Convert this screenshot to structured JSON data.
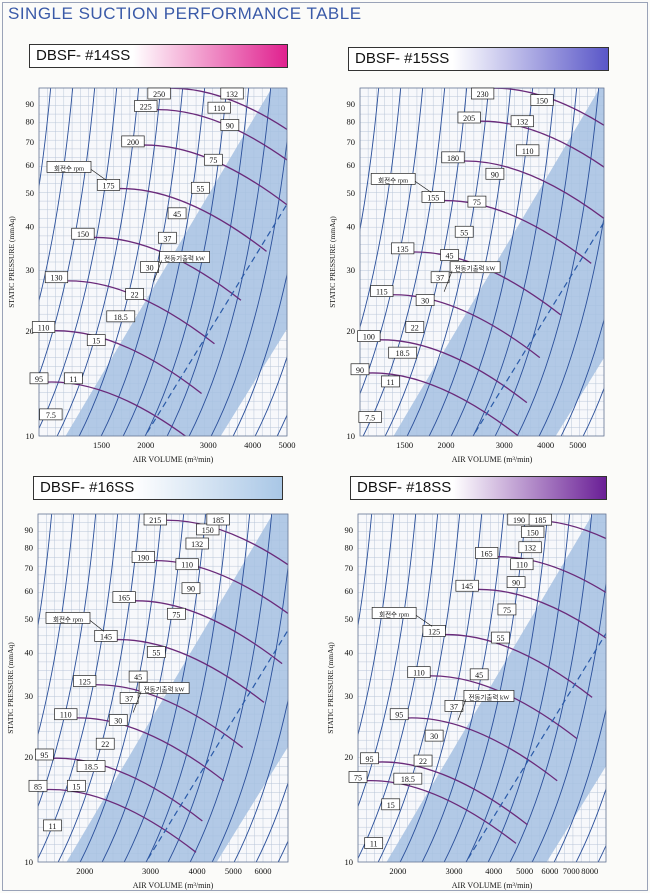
{
  "page": {
    "title": "SINGLE SUCTION PERFORMANCE TABLE"
  },
  "colors": {
    "title": "#3a5aa8",
    "band": "#a6c1e2",
    "grid": "#b9c6d8",
    "rpm_curve": "#6a2a7a",
    "power_curve": "#2a4f9a",
    "slope_line": "#2a5aa8"
  },
  "chart_data": [
    {
      "type": "line",
      "title": "DBSF- #14SS",
      "banner_colors": [
        "#ffffff",
        "#e0218f"
      ],
      "xlabel": "AIR VOLUME (m³/min)",
      "ylabel": "STATIC PRESSURE (mmAq)",
      "x_scale": "log",
      "y_scale": "log",
      "xlim": [
        1000,
        5000
      ],
      "ylim": [
        10,
        100
      ],
      "xticks": [
        1500,
        2000,
        3000,
        4000,
        5000
      ],
      "yticks": [
        10,
        20,
        30,
        40,
        50,
        60,
        70,
        80,
        90
      ],
      "rpm_label": "회전수 rpm",
      "kw_label": "전동기출력 kW",
      "rpm": [
        {
          "value": "95",
          "x": 1000,
          "y": 14.6
        },
        {
          "value": "110",
          "x": 1030,
          "y": 20.5
        },
        {
          "value": "130",
          "x": 1120,
          "y": 28.5
        },
        {
          "value": "150",
          "x": 1330,
          "y": 38.0
        },
        {
          "value": "175",
          "x": 1570,
          "y": 52.5
        },
        {
          "value": "200",
          "x": 1840,
          "y": 70.0
        },
        {
          "value": "225",
          "x": 2000,
          "y": 88.5
        },
        {
          "value": "250",
          "x": 2180,
          "y": 102.0
        }
      ],
      "kw": [
        {
          "value": "7.5",
          "x": 1080,
          "y": 11.5
        },
        {
          "value": "11",
          "x": 1250,
          "y": 14.6
        },
        {
          "value": "15",
          "x": 1450,
          "y": 18.8
        },
        {
          "value": "18.5",
          "x": 1700,
          "y": 22.0
        },
        {
          "value": "22",
          "x": 1860,
          "y": 25.5
        },
        {
          "value": "30",
          "x": 2050,
          "y": 30.5
        },
        {
          "value": "37",
          "x": 2300,
          "y": 37.0
        },
        {
          "value": "45",
          "x": 2450,
          "y": 43.5
        },
        {
          "value": "55",
          "x": 2850,
          "y": 51.5
        },
        {
          "value": "75",
          "x": 3100,
          "y": 62.0
        },
        {
          "value": "90",
          "x": 3450,
          "y": 78.0
        },
        {
          "value": "110",
          "x": 3220,
          "y": 87.5
        },
        {
          "value": "132",
          "x": 3500,
          "y": 96.5
        }
      ]
    },
    {
      "type": "line",
      "title": "DBSF- #15SS",
      "banner_colors": [
        "#ffffff",
        "#5a57c8"
      ],
      "xlabel": "AIR VOLUME (m³/min)",
      "ylabel": "STATIC PRESSURE (mmAq)",
      "x_scale": "log",
      "y_scale": "log",
      "xlim": [
        1100,
        6000
      ],
      "ylim": [
        10,
        100
      ],
      "xticks": [
        1500,
        2000,
        3000,
        4000,
        5000
      ],
      "yticks": [
        10,
        20,
        30,
        40,
        50,
        60,
        70,
        80,
        90
      ],
      "rpm_label": "회전수 rpm",
      "kw_label": "전동기출력 kW",
      "rpm": [
        {
          "value": "90",
          "x": 1100,
          "y": 15.5
        },
        {
          "value": "100",
          "x": 1170,
          "y": 19.3
        },
        {
          "value": "115",
          "x": 1280,
          "y": 26.0
        },
        {
          "value": "135",
          "x": 1480,
          "y": 34.5
        },
        {
          "value": "155",
          "x": 1830,
          "y": 48.5
        },
        {
          "value": "180",
          "x": 2100,
          "y": 63.0
        },
        {
          "value": "205",
          "x": 2350,
          "y": 82.0
        },
        {
          "value": "230",
          "x": 2580,
          "y": 102.0
        }
      ],
      "kw": [
        {
          "value": "7.5",
          "x": 1180,
          "y": 11.3
        },
        {
          "value": "11",
          "x": 1360,
          "y": 14.3
        },
        {
          "value": "18.5",
          "x": 1480,
          "y": 17.3
        },
        {
          "value": "22",
          "x": 1610,
          "y": 20.5
        },
        {
          "value": "30",
          "x": 1730,
          "y": 24.5
        },
        {
          "value": "37",
          "x": 1920,
          "y": 28.5
        },
        {
          "value": "45",
          "x": 2050,
          "y": 33.0
        },
        {
          "value": "55",
          "x": 2270,
          "y": 38.5
        },
        {
          "value": "75",
          "x": 2480,
          "y": 47.0
        },
        {
          "value": "90",
          "x": 2810,
          "y": 56.5
        },
        {
          "value": "110",
          "x": 3530,
          "y": 66.0
        },
        {
          "value": "132",
          "x": 3400,
          "y": 80.0
        },
        {
          "value": "150",
          "x": 3900,
          "y": 92.0
        }
      ]
    },
    {
      "type": "line",
      "title": "DBSF- #16SS",
      "banner_colors": [
        "#ffffff",
        "#a9c7e6"
      ],
      "xlabel": "AIR VOLUME (m³/min)",
      "ylabel": "STATIC PRESSURE (mmAq)",
      "x_scale": "log",
      "y_scale": "log",
      "xlim": [
        1500,
        7000
      ],
      "ylim": [
        10,
        100
      ],
      "xticks": [
        2000,
        3000,
        4000,
        5000,
        6000
      ],
      "yticks": [
        10,
        20,
        30,
        40,
        50,
        60,
        70,
        80,
        90
      ],
      "rpm_label": "회전수 rpm",
      "kw_label": "전동기출력 kW",
      "rpm": [
        {
          "value": "85",
          "x": 1500,
          "y": 16.5
        },
        {
          "value": "95",
          "x": 1560,
          "y": 20.3
        },
        {
          "value": "110",
          "x": 1780,
          "y": 26.5
        },
        {
          "value": "125",
          "x": 2000,
          "y": 33.0
        },
        {
          "value": "145",
          "x": 2280,
          "y": 44.5
        },
        {
          "value": "165",
          "x": 2550,
          "y": 57.5
        },
        {
          "value": "190",
          "x": 2870,
          "y": 75.0
        },
        {
          "value": "215",
          "x": 3090,
          "y": 98.0
        }
      ],
      "kw": [
        {
          "value": "11",
          "x": 1640,
          "y": 12.7
        },
        {
          "value": "15",
          "x": 1900,
          "y": 16.5
        },
        {
          "value": "18.5",
          "x": 2080,
          "y": 18.8
        },
        {
          "value": "22",
          "x": 2270,
          "y": 21.8
        },
        {
          "value": "30",
          "x": 2460,
          "y": 25.5
        },
        {
          "value": "37",
          "x": 2630,
          "y": 29.5
        },
        {
          "value": "45",
          "x": 2780,
          "y": 34.0
        },
        {
          "value": "55",
          "x": 3110,
          "y": 40.0
        },
        {
          "value": "75",
          "x": 3520,
          "y": 51.5
        },
        {
          "value": "90",
          "x": 3850,
          "y": 61.0
        },
        {
          "value": "110",
          "x": 3760,
          "y": 71.5
        },
        {
          "value": "132",
          "x": 4000,
          "y": 82.0
        },
        {
          "value": "150",
          "x": 4270,
          "y": 90.0
        },
        {
          "value": "185",
          "x": 4550,
          "y": 98.0
        }
      ]
    },
    {
      "type": "line",
      "title": "DBSF- #18SS",
      "banner_colors": [
        "#ffffff",
        "#6a1f96"
      ],
      "xlabel": "AIR VOLUME (m³/min)",
      "ylabel": "STATIC PRESSURE (mmAq)",
      "x_scale": "log",
      "y_scale": "log",
      "xlim": [
        1500,
        9000
      ],
      "ylim": [
        10,
        100
      ],
      "xticks": [
        2000,
        3000,
        4000,
        5000,
        6000,
        7000,
        8000
      ],
      "yticks": [
        10,
        20,
        30,
        40,
        50,
        60,
        70,
        80,
        90
      ],
      "rpm_label": "회전수 rpm",
      "kw_label": "전동기출력 kW",
      "rpm": [
        {
          "value": "75",
          "x": 1500,
          "y": 17.5
        },
        {
          "value": "95",
          "x": 1630,
          "y": 19.8
        },
        {
          "value": "95",
          "x": 2020,
          "y": 26.5
        },
        {
          "value": "110",
          "x": 2330,
          "y": 35.0
        },
        {
          "value": "125",
          "x": 2600,
          "y": 46.0
        },
        {
          "value": "145",
          "x": 3300,
          "y": 62.0
        },
        {
          "value": "165",
          "x": 3800,
          "y": 77.0
        },
        {
          "value": "190",
          "x": 4800,
          "y": 98.0
        }
      ],
      "kw": [
        {
          "value": "11",
          "x": 1680,
          "y": 11.3
        },
        {
          "value": "15",
          "x": 1900,
          "y": 14.6
        },
        {
          "value": "18.5",
          "x": 2150,
          "y": 17.3
        },
        {
          "value": "22",
          "x": 2400,
          "y": 19.5
        },
        {
          "value": "30",
          "x": 2600,
          "y": 23.0
        },
        {
          "value": "37",
          "x": 3000,
          "y": 28.0
        },
        {
          "value": "45",
          "x": 3600,
          "y": 34.5
        },
        {
          "value": "55",
          "x": 4200,
          "y": 44.0
        },
        {
          "value": "75",
          "x": 4400,
          "y": 53.0
        },
        {
          "value": "90",
          "x": 4700,
          "y": 63.5
        },
        {
          "value": "110",
          "x": 4900,
          "y": 71.5
        },
        {
          "value": "132",
          "x": 5200,
          "y": 80.0
        },
        {
          "value": "150",
          "x": 5300,
          "y": 88.5
        },
        {
          "value": "185",
          "x": 5600,
          "y": 96.0
        }
      ]
    }
  ]
}
